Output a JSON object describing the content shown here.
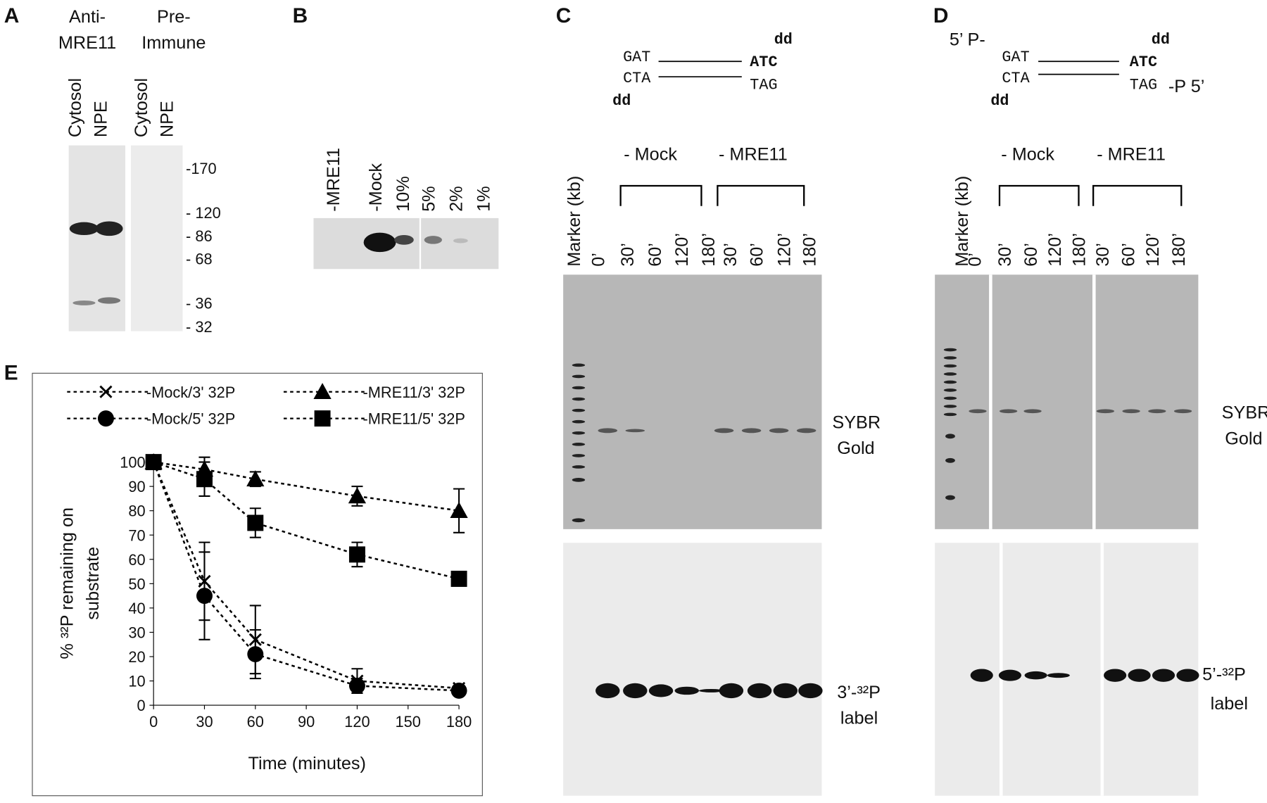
{
  "panel_a": {
    "letter": "A",
    "group1": [
      "Anti-",
      "MRE11"
    ],
    "group2": [
      "Pre-",
      "Immune"
    ],
    "lanes": [
      "Cytosol",
      "NPE",
      "Cytosol",
      "NPE"
    ],
    "markers": [
      "-170",
      "- 120",
      "- 86",
      "- 68",
      "- 36",
      "- 32"
    ]
  },
  "panel_b": {
    "letter": "B",
    "lanes": [
      "-MRE11",
      "-Mock",
      "10%",
      "5%",
      "2%",
      "1%"
    ]
  },
  "panel_c": {
    "letter": "C",
    "schematic": {
      "top_dd": "dd",
      "top_left": "GAT",
      "top_right": "ATC",
      "bottom_left": "CTA",
      "bottom_right": "TAG",
      "bottom_dd": "dd"
    },
    "groups": [
      "- Mock",
      "- MRE11"
    ],
    "lanes": [
      "Marker (kb)",
      "0’",
      "30’",
      "60’",
      "120’",
      "180’",
      "30’",
      "60’",
      "120’",
      "180’"
    ],
    "top_label": [
      "SYBR",
      "Gold"
    ],
    "bottom_label": [
      "3’-³²P",
      "label"
    ]
  },
  "panel_d": {
    "letter": "D",
    "schematic": {
      "prefix": "5’ P-",
      "top_dd": "dd",
      "top_left": "GAT",
      "top_right": "ATC",
      "bottom_left": "CTA",
      "bottom_right": "TAG",
      "suffix": "-P 5’",
      "bottom_dd": "dd"
    },
    "groups": [
      "- Mock",
      "- MRE11"
    ],
    "lanes": [
      "Marker (kb)",
      "0’",
      "30’",
      "60’",
      "120’",
      "180’",
      "30’",
      "60’",
      "120’",
      "180’"
    ],
    "top_label": [
      "SYBR",
      "Gold"
    ],
    "bottom_label": [
      "5’-³²P",
      "label"
    ]
  },
  "panel_e": {
    "letter": "E"
  },
  "chart_data": {
    "type": "line",
    "xlabel": "Time (minutes)",
    "ylabel": [
      "% ³²P remaining on",
      "substrate"
    ],
    "x": [
      0,
      30,
      60,
      120,
      180
    ],
    "xlim": [
      0,
      180
    ],
    "xticks": [
      0,
      30,
      60,
      90,
      120,
      150,
      180
    ],
    "ylim": [
      0,
      100
    ],
    "yticks": [
      0,
      10,
      20,
      30,
      40,
      50,
      60,
      70,
      80,
      90,
      100
    ],
    "linestyle": "dotted",
    "series": [
      {
        "name": "-Mock/3' 32P",
        "color": "#000000",
        "marker": "x",
        "values": [
          100,
          51,
          27,
          10,
          7
        ],
        "errors": [
          0,
          16,
          14,
          5,
          1
        ]
      },
      {
        "name": "-MRE11/3' 32P",
        "color": "#000000",
        "marker": "triangle",
        "values": [
          100,
          97,
          93,
          86,
          80
        ],
        "errors": [
          0,
          5,
          3,
          4,
          9
        ]
      },
      {
        "name": "-Mock/5' 32P",
        "color": "#000000",
        "marker": "circle",
        "values": [
          100,
          45,
          21,
          8,
          6
        ],
        "errors": [
          0,
          18,
          10,
          3,
          1
        ]
      },
      {
        "name": "-MRE11/5' 32P",
        "color": "#000000",
        "marker": "square",
        "values": [
          100,
          93,
          75,
          62,
          52
        ],
        "errors": [
          0,
          7,
          6,
          5,
          1
        ]
      }
    ]
  }
}
